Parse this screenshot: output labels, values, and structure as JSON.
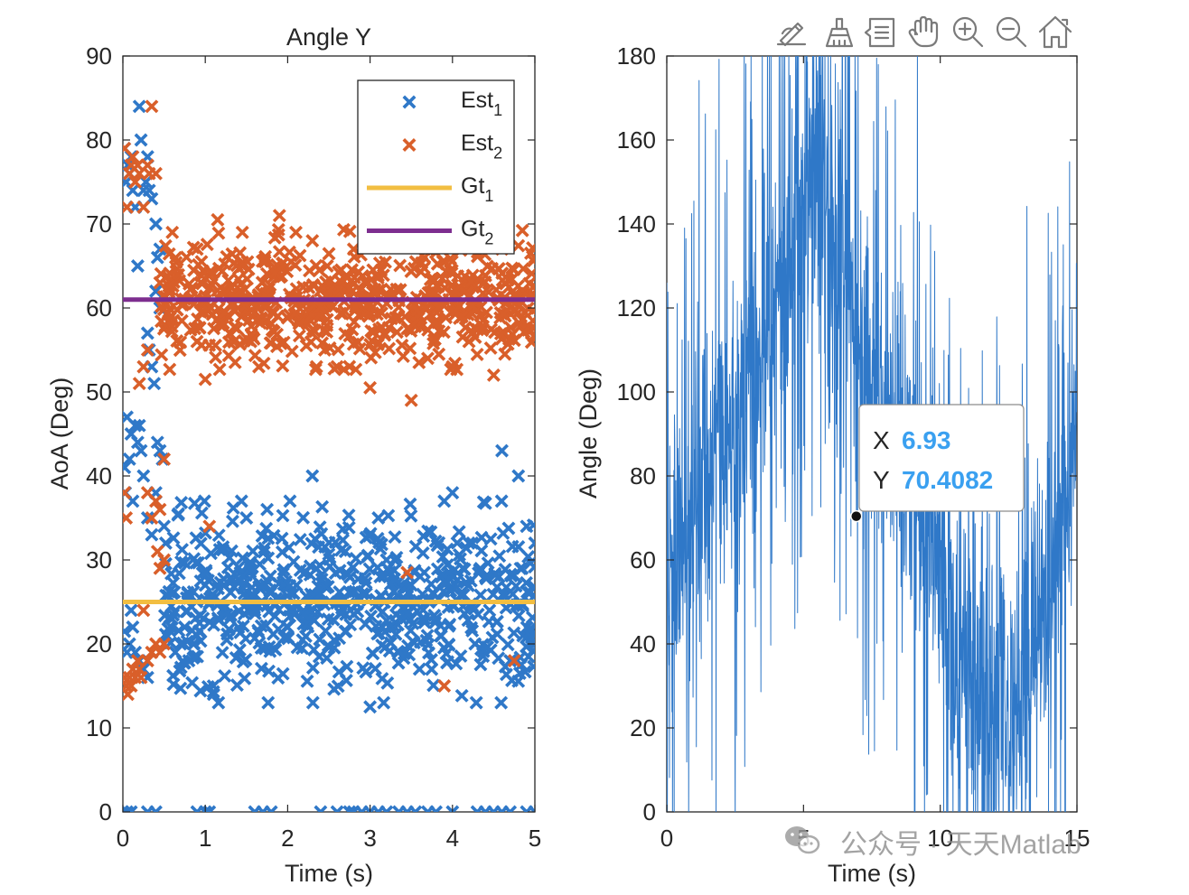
{
  "chart_data": [
    {
      "type": "scatter",
      "title": "Angle Y",
      "xlabel": "Time (s)",
      "ylabel": "AoA (Deg)",
      "xlim": [
        0,
        5
      ],
      "ylim": [
        0,
        90
      ],
      "xticks": [
        0,
        1,
        2,
        3,
        4,
        5
      ],
      "yticks": [
        0,
        10,
        20,
        30,
        40,
        50,
        60,
        70,
        80,
        90
      ],
      "grid": false,
      "legend_position": "top-right",
      "series": [
        {
          "name": "Est",
          "name_sub": "1",
          "kind": "scatter",
          "marker": "x",
          "color": "#2f78c8",
          "points": [
            [
              0.02,
              79
            ],
            [
              0.04,
              75
            ],
            [
              0.06,
              77
            ],
            [
              0.08,
              76
            ],
            [
              0.1,
              78
            ],
            [
              0.12,
              74
            ],
            [
              0.15,
              72
            ],
            [
              0.18,
              65
            ],
            [
              0.2,
              84
            ],
            [
              0.22,
              80
            ],
            [
              0.25,
              74
            ],
            [
              0.28,
              75
            ],
            [
              0.3,
              78
            ],
            [
              0.32,
              74
            ],
            [
              0.35,
              73
            ],
            [
              0.4,
              70
            ],
            [
              0.42,
              66
            ],
            [
              0.45,
              67
            ],
            [
              0.3,
              57
            ],
            [
              0.32,
              55
            ],
            [
              0.35,
              53
            ],
            [
              0.38,
              51
            ],
            [
              0.4,
              62
            ],
            [
              0.45,
              60
            ],
            [
              0.02,
              41
            ],
            [
              0.03,
              38
            ],
            [
              0.05,
              47
            ],
            [
              0.08,
              42
            ],
            [
              0.1,
              45
            ],
            [
              0.12,
              37
            ],
            [
              0.15,
              46
            ],
            [
              0.18,
              44
            ],
            [
              0.2,
              46
            ],
            [
              0.22,
              43
            ],
            [
              0.25,
              40
            ],
            [
              0.3,
              35
            ],
            [
              0.35,
              33
            ],
            [
              0.4,
              38
            ],
            [
              0.42,
              44
            ],
            [
              0.45,
              43
            ],
            [
              0.48,
              42
            ],
            [
              0.5,
              34
            ],
            [
              0.52,
              32
            ],
            [
              0.02,
              21.5
            ],
            [
              0.05,
              19
            ],
            [
              0.08,
              20
            ],
            [
              0.1,
              24
            ],
            [
              0.12,
              22
            ],
            [
              0.15,
              19
            ],
            [
              0.2,
              18
            ],
            [
              0.25,
              17
            ],
            [
              0.3,
              16
            ],
            [
              0.6,
              26
            ],
            [
              0.7,
              20
            ],
            [
              0.75,
              22
            ],
            [
              0.8,
              18
            ],
            [
              0.9,
              21
            ],
            [
              1.0,
              27
            ],
            [
              1.1,
              14
            ],
            [
              1.3,
              23
            ],
            [
              1.5,
              35
            ],
            [
              1.6,
              24
            ],
            [
              1.75,
              36
            ],
            [
              2.0,
              22
            ],
            [
              2.3,
              40
            ],
            [
              2.35,
              29
            ],
            [
              2.5,
              25
            ],
            [
              2.7,
              31
            ],
            [
              3.0,
              12.5
            ],
            [
              3.1,
              35
            ],
            [
              3.15,
              22
            ],
            [
              3.2,
              30
            ],
            [
              3.5,
              27
            ],
            [
              3.6,
              17
            ],
            [
              3.8,
              23
            ],
            [
              3.9,
              37
            ],
            [
              4.0,
              38
            ],
            [
              4.2,
              32
            ],
            [
              4.4,
              28
            ],
            [
              4.45,
              24
            ],
            [
              4.6,
              43
            ],
            [
              4.7,
              18
            ],
            [
              4.8,
              40
            ],
            [
              4.9,
              34
            ],
            [
              5.0,
              20
            ],
            [
              5.0,
              32
            ],
            [
              0,
              0
            ],
            [
              0.05,
              0
            ],
            [
              0.1,
              0
            ],
            [
              0.3,
              0
            ],
            [
              0.4,
              0
            ],
            [
              0.9,
              0
            ],
            [
              1.0,
              0
            ],
            [
              1.05,
              0
            ],
            [
              1.6,
              0
            ],
            [
              1.7,
              0
            ],
            [
              1.8,
              0
            ],
            [
              2.4,
              0
            ],
            [
              2.6,
              0
            ],
            [
              2.75,
              0
            ],
            [
              2.8,
              0
            ],
            [
              2.9,
              0
            ],
            [
              3.0,
              0
            ],
            [
              3.1,
              0
            ],
            [
              3.2,
              0
            ],
            [
              3.35,
              0
            ],
            [
              3.45,
              0
            ],
            [
              3.55,
              0
            ],
            [
              3.7,
              0
            ],
            [
              3.8,
              0
            ],
            [
              4.0,
              0
            ],
            [
              4.3,
              0
            ],
            [
              4.4,
              0
            ],
            [
              4.5,
              0
            ],
            [
              4.6,
              0
            ],
            [
              4.7,
              0
            ],
            [
              4.9,
              0
            ],
            [
              5.0,
              0
            ]
          ],
          "cloud": {
            "x_from": 0.5,
            "x_to": 5.0,
            "y_center": 25,
            "y_spread": 7.5,
            "count": 620
          }
        },
        {
          "name": "Est",
          "name_sub": "2",
          "kind": "scatter",
          "marker": "x",
          "color": "#d95f2a",
          "points": [
            [
              0.02,
              79
            ],
            [
              0.05,
              72
            ],
            [
              0.08,
              76
            ],
            [
              0.1,
              77
            ],
            [
              0.12,
              78
            ],
            [
              0.15,
              75
            ],
            [
              0.18,
              77
            ],
            [
              0.2,
              76
            ],
            [
              0.25,
              72
            ],
            [
              0.3,
              77
            ],
            [
              0.32,
              76
            ],
            [
              0.35,
              84
            ],
            [
              0.4,
              76
            ],
            [
              0.45,
              63
            ],
            [
              0.2,
              51
            ],
            [
              0.25,
              53
            ],
            [
              0.3,
              55
            ],
            [
              0.02,
              38
            ],
            [
              0.04,
              35
            ],
            [
              0.3,
              38
            ],
            [
              0.35,
              35
            ],
            [
              0.4,
              37
            ],
            [
              0.45,
              36
            ],
            [
              0.5,
              42
            ],
            [
              0.42,
              31
            ],
            [
              0.45,
              29
            ],
            [
              0.5,
              30
            ],
            [
              0.02,
              16
            ],
            [
              0.04,
              15
            ],
            [
              0.06,
              14
            ],
            [
              0.08,
              16
            ],
            [
              0.1,
              15
            ],
            [
              0.12,
              17
            ],
            [
              0.15,
              16
            ],
            [
              0.18,
              18
            ],
            [
              0.2,
              17
            ],
            [
              0.22,
              16
            ],
            [
              0.25,
              24
            ],
            [
              0.3,
              18
            ],
            [
              0.35,
              19
            ],
            [
              0.4,
              20
            ],
            [
              0.45,
              19
            ],
            [
              0.5,
              20
            ],
            [
              1.05,
              34
            ],
            [
              3.45,
              28.5
            ],
            [
              3.9,
              15
            ],
            [
              4.75,
              18
            ],
            [
              0.9,
              56
            ],
            [
              1.0,
              51.5
            ],
            [
              1.65,
              53
            ],
            [
              2.35,
              53
            ],
            [
              2.45,
              55
            ],
            [
              2.6,
              53
            ],
            [
              3.0,
              50.5
            ],
            [
              3.5,
              49
            ],
            [
              3.7,
              54
            ],
            [
              4.0,
              53
            ],
            [
              4.2,
              56
            ],
            [
              4.5,
              52
            ],
            [
              0.6,
              69
            ],
            [
              0.9,
              67
            ],
            [
              1.15,
              70.5
            ],
            [
              1.45,
              69
            ],
            [
              1.9,
              71
            ],
            [
              2.1,
              69
            ],
            [
              2.3,
              68
            ],
            [
              2.8,
              67
            ],
            [
              3.2,
              68
            ],
            [
              3.7,
              67
            ],
            [
              4.2,
              68
            ],
            [
              4.6,
              67
            ],
            [
              5.0,
              66
            ]
          ],
          "cloud": {
            "x_from": 0.45,
            "x_to": 5.0,
            "y_center": 61,
            "y_spread": 5.2,
            "count": 620
          }
        },
        {
          "name": "Gt",
          "name_sub": "1",
          "kind": "line",
          "color": "#f2be41",
          "points": [
            [
              0,
              25
            ],
            [
              5,
              25
            ]
          ]
        },
        {
          "name": "Gt",
          "name_sub": "2",
          "kind": "line",
          "color": "#7d2e8f",
          "points": [
            [
              0,
              61
            ],
            [
              5,
              61
            ]
          ]
        }
      ]
    },
    {
      "type": "line",
      "title": "",
      "xlabel": "Time (s)",
      "ylabel": "Angle (Deg)",
      "xlim": [
        0,
        15
      ],
      "ylim": [
        0,
        180
      ],
      "xticks": [
        0,
        5,
        10,
        15
      ],
      "yticks": [
        0,
        20,
        40,
        60,
        80,
        100,
        120,
        140,
        160,
        180
      ],
      "grid": false,
      "series": [
        {
          "kind": "noisy-line",
          "color": "#2f78c8",
          "trend": [
            [
              0,
              55
            ],
            [
              1,
              70
            ],
            [
              2,
              85
            ],
            [
              3,
              100
            ],
            [
              4,
              125
            ],
            [
              5,
              150
            ],
            [
              6,
              150
            ],
            [
              7,
              110
            ],
            [
              8,
              95
            ],
            [
              9,
              80
            ],
            [
              10,
              55
            ],
            [
              11,
              35
            ],
            [
              12,
              20
            ],
            [
              13,
              30
            ],
            [
              14,
              55
            ],
            [
              15,
              85
            ]
          ],
          "noise": 18,
          "spike_rate": 0.18,
          "samples": 1500
        }
      ],
      "datatip": {
        "x_label": "X",
        "x_value": "6.93",
        "y_label": "Y",
        "y_value": "70.4082",
        "x": 6.93,
        "y": 70.4082
      }
    }
  ],
  "toolbar": {
    "icons": [
      "edit-plot-icon",
      "brush-icon",
      "data-tips-icon",
      "pan-icon",
      "zoom-in-icon",
      "zoom-out-icon",
      "home-icon"
    ]
  },
  "watermark": {
    "text": "公众号 · 天天Matlab"
  }
}
